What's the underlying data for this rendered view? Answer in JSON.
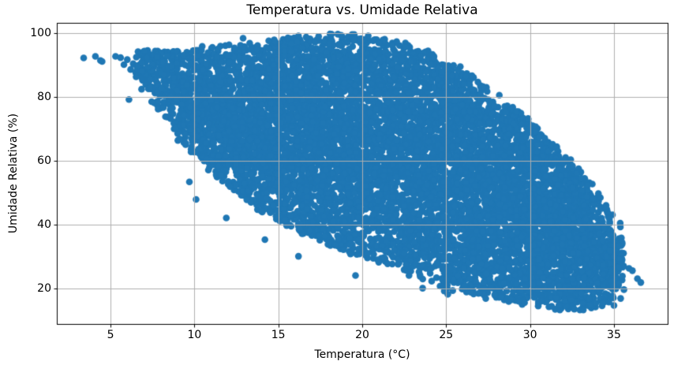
{
  "figure": {
    "background_color": "#ffffff"
  },
  "chart_data": {
    "type": "scatter",
    "title": "Temperatura vs. Umidade Relativa",
    "xlabel": "Temperatura (°C)",
    "ylabel": "Umidade Relativa (%)",
    "xlim": [
      1.8,
      38.2
    ],
    "ylim": [
      9,
      103.3
    ],
    "xticks": [
      5,
      10,
      15,
      20,
      25,
      30,
      35
    ],
    "yticks": [
      20,
      40,
      60,
      80,
      100
    ],
    "grid": true,
    "grid_color": "#b0b0b0",
    "axes_color": "#000000",
    "text_color": "#000000",
    "marker_color": "#1f77b4",
    "marker_radius_px": 4.3,
    "legend": "none",
    "relationship": "negative correlation: relative humidity decreases as temperature increases",
    "n_points": 9000,
    "seed": 1337,
    "dense_band_envelope": [
      [
        6.5,
        85.0,
        94.5
      ],
      [
        7.5,
        79.0,
        95.0
      ],
      [
        9.0,
        67.0,
        95.0
      ],
      [
        10.0,
        61.5,
        95.0
      ],
      [
        12.0,
        52.0,
        96.0
      ],
      [
        14.0,
        44.5,
        97.2
      ],
      [
        16.0,
        38.5,
        99.0
      ],
      [
        18.0,
        33.5,
        99.6
      ],
      [
        20.0,
        30.0,
        99.6
      ],
      [
        21.0,
        28.5,
        99.0
      ],
      [
        22.0,
        27.0,
        97.5
      ],
      [
        24.0,
        21.5,
        94.0
      ],
      [
        25.0,
        19.5,
        91.0
      ],
      [
        26.0,
        18.5,
        88.5
      ],
      [
        28.0,
        16.8,
        81.0
      ],
      [
        30.0,
        15.2,
        72.5
      ],
      [
        31.0,
        14.3,
        67.5
      ],
      [
        32.0,
        13.8,
        62.0
      ],
      [
        33.0,
        13.8,
        57.0
      ],
      [
        34.0,
        14.5,
        50.5
      ],
      [
        35.0,
        16.0,
        43.0
      ],
      [
        35.6,
        18.0,
        38.5
      ]
    ],
    "temp_density_weights": [
      [
        6.5,
        0.1
      ],
      [
        8.0,
        0.28
      ],
      [
        10.0,
        0.45
      ],
      [
        13.0,
        0.75
      ],
      [
        16.0,
        1.0
      ],
      [
        31.0,
        1.0
      ],
      [
        33.0,
        0.8
      ],
      [
        34.0,
        0.55
      ],
      [
        35.0,
        0.32
      ],
      [
        35.6,
        0.18
      ]
    ],
    "outlier_points": [
      [
        3.4,
        92.3
      ],
      [
        4.1,
        92.8
      ],
      [
        4.4,
        91.5
      ],
      [
        4.5,
        91.2
      ],
      [
        5.3,
        92.8
      ],
      [
        5.6,
        92.4
      ],
      [
        6.0,
        91.8
      ],
      [
        5.8,
        90.2
      ],
      [
        6.2,
        88.7
      ],
      [
        6.35,
        90.5
      ],
      [
        6.1,
        79.3
      ],
      [
        12.9,
        98.5
      ],
      [
        9.7,
        53.5
      ],
      [
        10.1,
        48.0
      ],
      [
        11.9,
        42.2
      ],
      [
        14.2,
        35.4
      ],
      [
        15.1,
        41.2
      ],
      [
        16.2,
        30.2
      ],
      [
        19.6,
        24.2
      ],
      [
        21.4,
        28.5
      ],
      [
        23.6,
        20.2
      ],
      [
        25.1,
        18.3
      ],
      [
        26.0,
        84.5
      ],
      [
        26.4,
        83.8
      ],
      [
        29.3,
        75.5
      ],
      [
        30.7,
        68.0
      ],
      [
        35.3,
        35.7
      ],
      [
        34.4,
        28.2
      ],
      [
        35.9,
        26.4
      ],
      [
        36.1,
        25.7
      ],
      [
        36.4,
        23.2
      ],
      [
        36.6,
        22.0
      ],
      [
        35.4,
        17.0
      ],
      [
        35.0,
        14.8
      ],
      [
        33.9,
        14.3
      ],
      [
        31.5,
        13.6
      ]
    ]
  }
}
